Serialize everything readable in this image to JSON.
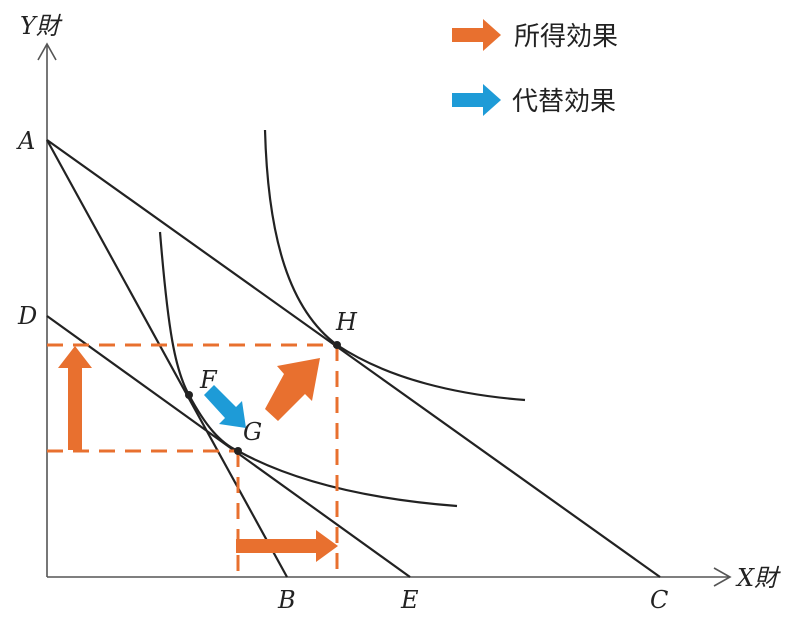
{
  "legend": [
    {
      "label": "所得効果",
      "color": "#E8702F",
      "icon": "arrow-right-icon"
    },
    {
      "label": "代替効果",
      "color": "#1E9BD7",
      "icon": "arrow-right-icon"
    }
  ],
  "axes": {
    "y_label": "Y財",
    "x_label": "X財"
  },
  "points": {
    "A": "A",
    "D": "D",
    "B": "B",
    "E": "E",
    "C": "C",
    "F": "F",
    "G": "G",
    "H": "H"
  },
  "colors": {
    "line": "#222222",
    "income_effect": "#E8702F",
    "substitution_effect": "#1E9BD7"
  }
}
